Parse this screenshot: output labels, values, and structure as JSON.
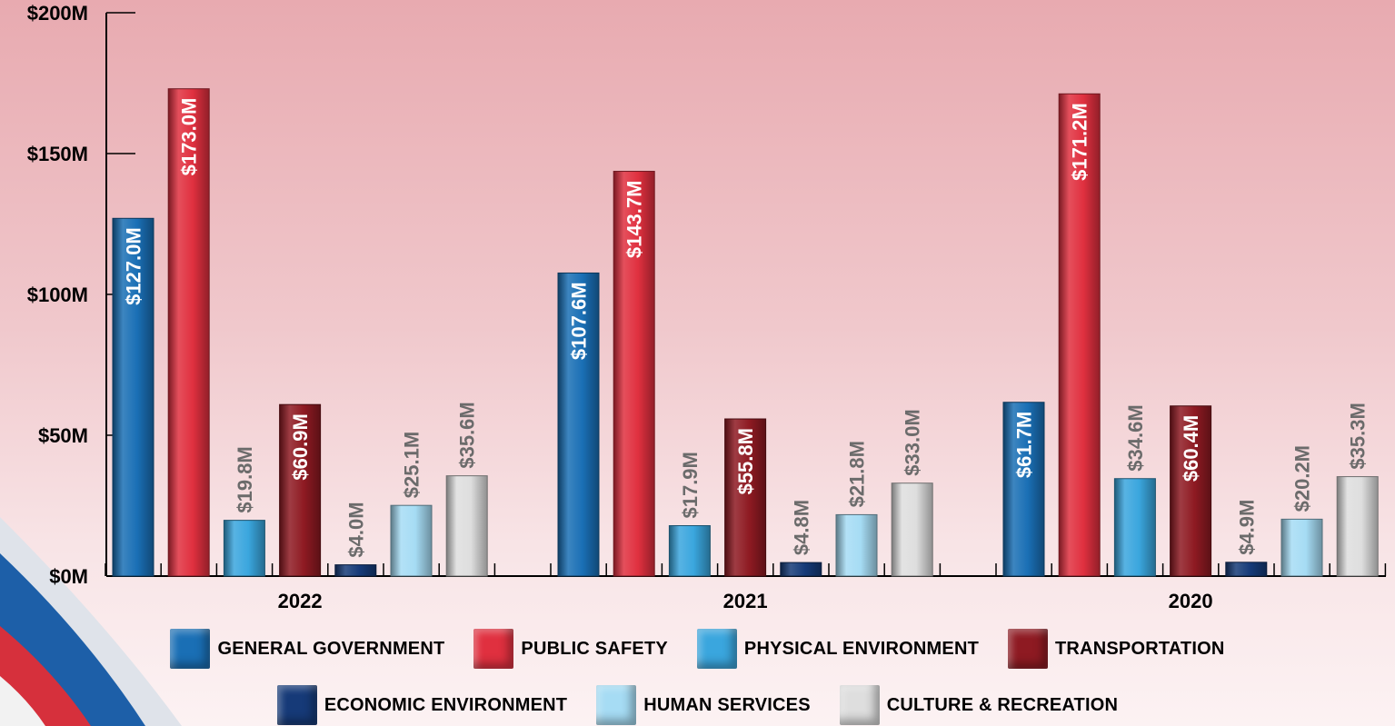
{
  "chart_data": {
    "type": "bar",
    "categories": [
      "2022",
      "2021",
      "2020"
    ],
    "ylim": [
      0,
      200
    ],
    "yticks": [
      "$0M",
      "$50M",
      "$100M",
      "$150M",
      "$200M"
    ],
    "series": [
      {
        "name": "GENERAL GOVERNMENT",
        "color": "#1a6fb5",
        "values": [
          127.0,
          107.6,
          61.7
        ],
        "labels": [
          "$127.0M",
          "$107.6M",
          "$61.7M"
        ]
      },
      {
        "name": "PUBLIC SAFETY",
        "color": "#e0303f",
        "values": [
          173.0,
          143.7,
          171.2
        ],
        "labels": [
          "$173.0M",
          "$143.7M",
          "$171.2M"
        ]
      },
      {
        "name": "PHYSICAL ENVIRONMENT",
        "color": "#3aa6de",
        "values": [
          19.8,
          17.9,
          34.6
        ],
        "labels": [
          "$19.8M",
          "$17.9M",
          "$34.6M"
        ]
      },
      {
        "name": "TRANSPORTATION",
        "color": "#8e1a22",
        "values": [
          60.9,
          55.8,
          60.4
        ],
        "labels": [
          "$60.9M",
          "$55.8M",
          "$60.4M"
        ]
      },
      {
        "name": "ECONOMIC ENVIRONMENT",
        "color": "#163a78",
        "values": [
          4.0,
          4.8,
          4.9
        ],
        "labels": [
          "$4.0M",
          "$4.8M",
          "$4.9M"
        ]
      },
      {
        "name": "HUMAN SERVICES",
        "color": "#a6dcf4",
        "values": [
          25.1,
          21.8,
          20.2
        ],
        "labels": [
          "$25.1M",
          "$21.8M",
          "$20.2M"
        ]
      },
      {
        "name": "CULTURE & RECREATION",
        "color": "#dedede",
        "values": [
          35.6,
          33.0,
          35.3
        ],
        "labels": [
          "$35.6M",
          "$33.0M",
          "$35.3M"
        ]
      }
    ],
    "legend_position": "bottom",
    "grid": false
  }
}
